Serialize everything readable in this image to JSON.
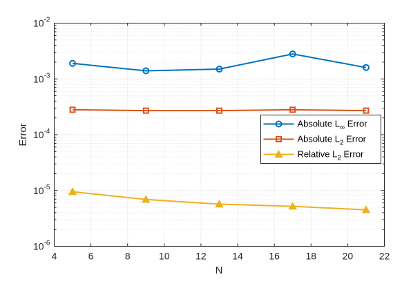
{
  "chart_data": {
    "type": "line",
    "title": "",
    "xlabel": "N",
    "ylabel": "Error",
    "xlim": [
      4,
      22
    ],
    "ylim": [
      1e-06,
      0.01
    ],
    "yscale": "log",
    "grid": true,
    "minor_grid": true,
    "x": [
      5,
      9,
      13,
      17,
      21
    ],
    "x_ticks": [
      "4",
      "6",
      "8",
      "10",
      "12",
      "14",
      "16",
      "18",
      "20",
      "22"
    ],
    "y_ticks": [
      {
        "base": "10",
        "exp": "-6"
      },
      {
        "base": "10",
        "exp": "-5"
      },
      {
        "base": "10",
        "exp": "-4"
      },
      {
        "base": "10",
        "exp": "-3"
      },
      {
        "base": "10",
        "exp": "-2"
      }
    ],
    "legend_position": "center-right",
    "series": [
      {
        "name": "Absolute L∞ Error",
        "legend_main": "Absolute L",
        "legend_sub": "∞",
        "legend_rest": " Error",
        "marker": "circle",
        "color": "#0072BD",
        "values": [
          0.0019,
          0.0014,
          0.0015,
          0.0028,
          0.0016
        ]
      },
      {
        "name": "Absolute L2 Error",
        "legend_main": "Absolute L",
        "legend_sub": "2",
        "legend_rest": " Error",
        "marker": "square",
        "color": "#D95319",
        "values": [
          0.00028,
          0.00027,
          0.00027,
          0.00028,
          0.00027
        ]
      },
      {
        "name": "Relative L2 Error",
        "legend_main": "Relative L",
        "legend_sub": "2",
        "legend_rest": " Error",
        "marker": "triangle",
        "color": "#EDB120",
        "values": [
          9.5e-06,
          6.9e-06,
          5.7e-06,
          5.2e-06,
          4.5e-06
        ]
      }
    ]
  }
}
